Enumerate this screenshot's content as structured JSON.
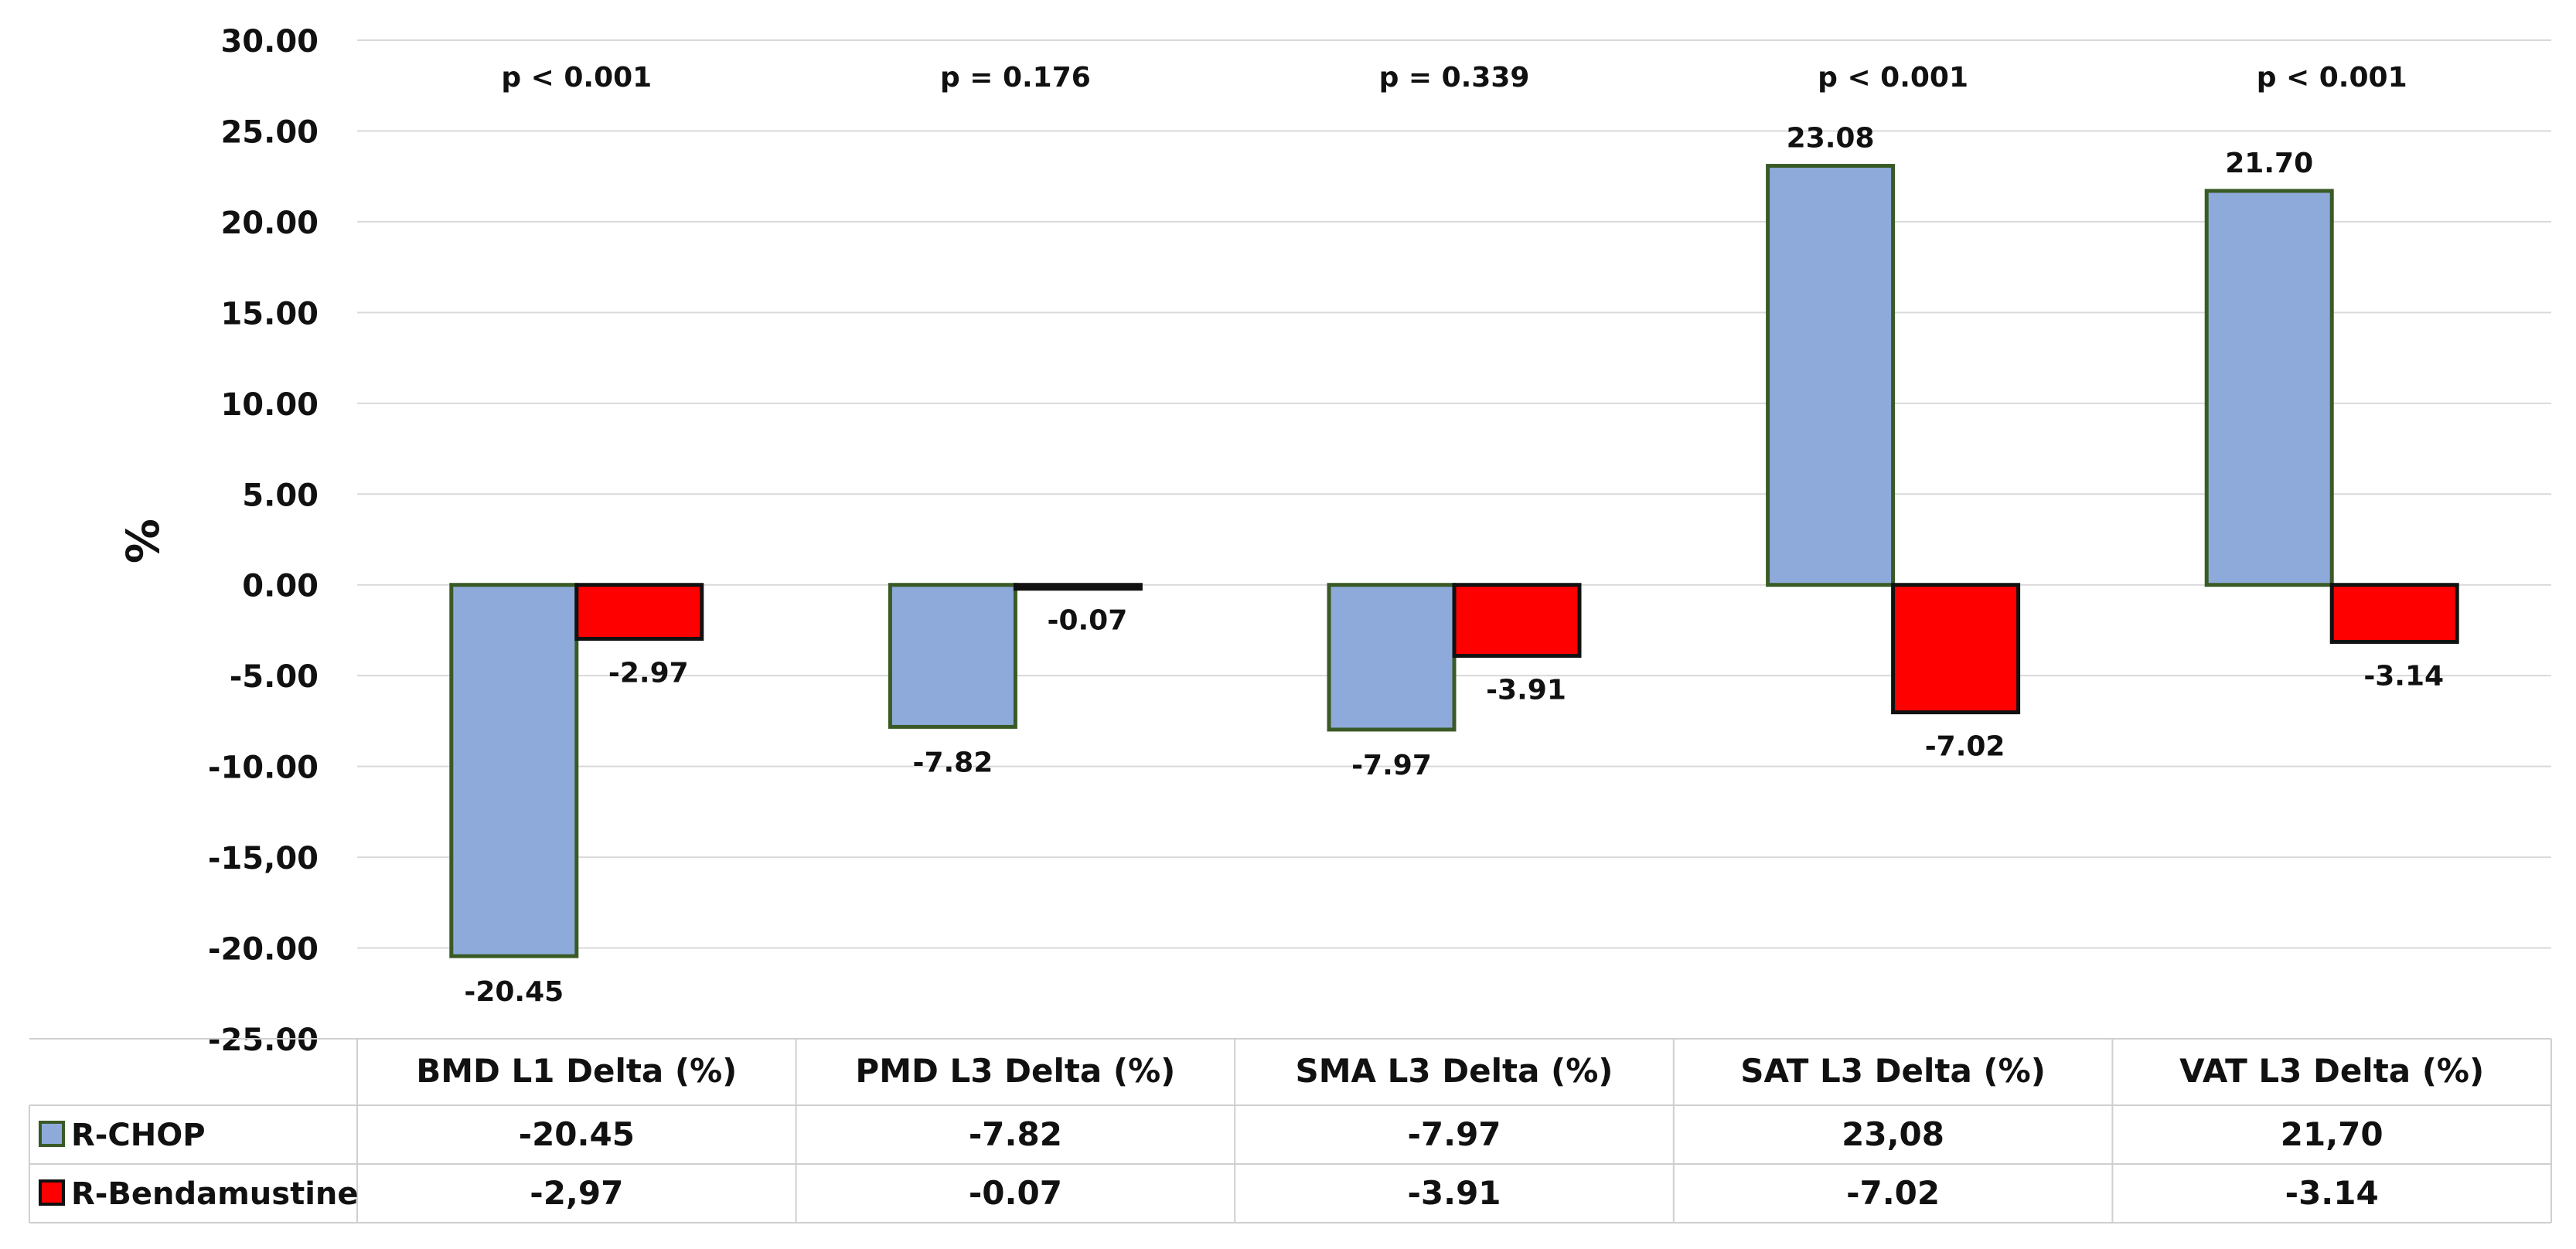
{
  "chart_data": {
    "type": "bar",
    "ylabel": "%",
    "ylim": [
      -25,
      30
    ],
    "yticks": [
      30,
      25,
      20,
      15,
      10,
      5,
      0,
      -5,
      -10,
      -15,
      -20,
      -25
    ],
    "ytick_labels": [
      "30.00",
      "25.00",
      "20.00",
      "15.00",
      "10.00",
      "5.00",
      "0.00",
      "-5.00",
      "-10.00",
      "-15,00",
      "-20.00",
      "-25.00"
    ],
    "grid": true,
    "categories": [
      "BMD L1 Delta (%)",
      "PMD L3 Delta (%)",
      "SMA L3 Delta (%)",
      "SAT L3 Delta (%)",
      "VAT L3 Delta (%)"
    ],
    "p_values": [
      "p < 0.001",
      "p = 0.176",
      "p = 0.339",
      "p < 0.001",
      "p < 0.001"
    ],
    "series": [
      {
        "name": "R-CHOP",
        "color": "#8eaadb",
        "edge_color": "#3a5a25",
        "values": [
          -20.45,
          -7.82,
          -7.97,
          23.08,
          21.7
        ],
        "data_labels": [
          "-20.45",
          "-7.82",
          "-7.97",
          "23.08",
          "21.70"
        ],
        "table_values": [
          "-20.45",
          "-7.82",
          "-7.97",
          "23,08",
          "21,70"
        ]
      },
      {
        "name": "R-Bendamustine",
        "color": "#ff0000",
        "edge_color": "#111111",
        "values": [
          -2.97,
          -0.07,
          -3.91,
          -7.02,
          -3.14
        ],
        "data_labels": [
          "-2.97",
          "-0.07",
          "-3.91",
          "-7.02",
          "-3.14"
        ],
        "table_values": [
          "-2,97",
          "-0.07",
          "-3.91",
          "-7.02",
          "-3.14"
        ]
      }
    ]
  }
}
